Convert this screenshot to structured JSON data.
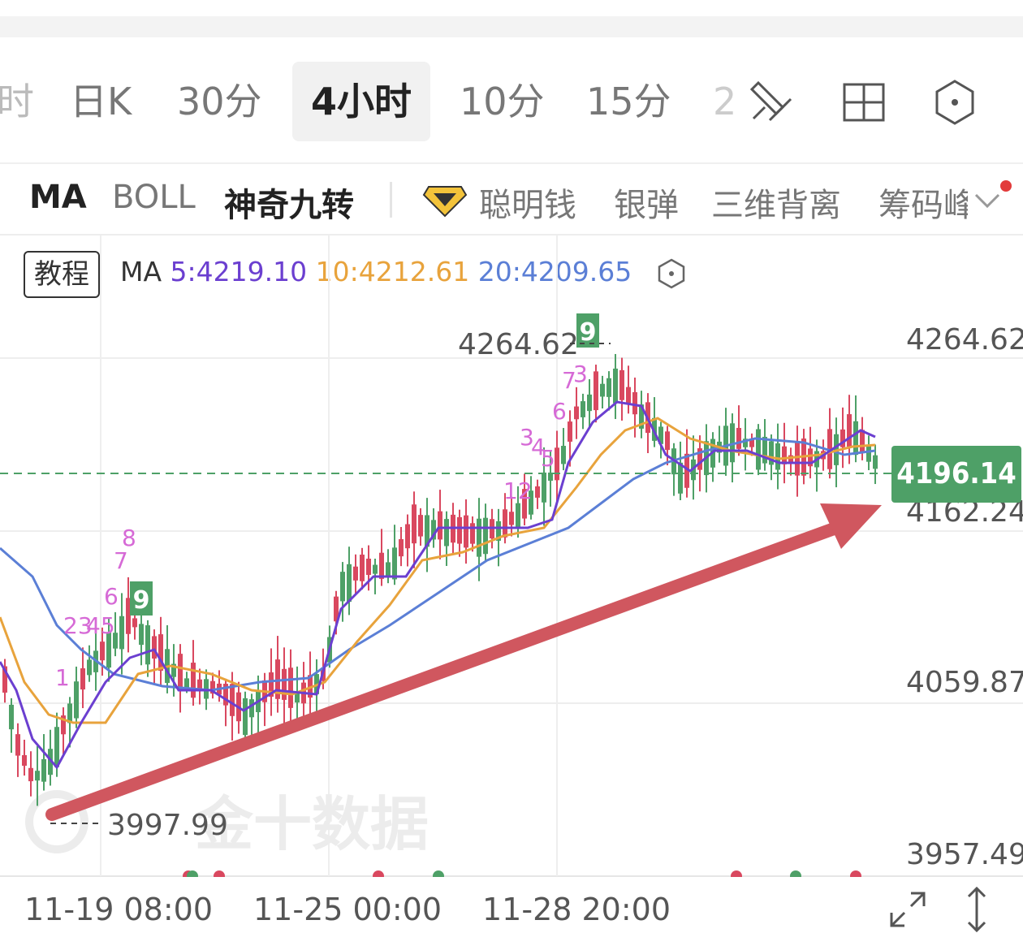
{
  "tabs": {
    "partial_left": "时",
    "items": [
      "日K",
      "30分",
      "4小时",
      "10分",
      "15分"
    ],
    "partial_right": "2",
    "active": "4小时"
  },
  "indicators": {
    "items": [
      "MA",
      "BOLL",
      "神奇九转"
    ],
    "items2": [
      "聪明钱",
      "银弹",
      "三维背离",
      "筹码峰"
    ]
  },
  "tutorial_label": "教程",
  "ma": {
    "label": "MA",
    "ma5": "5:4219.10",
    "ma10": "10:4212.61",
    "ma20": "20:4209.65",
    "colors": {
      "ma5": "#6b3fd0",
      "ma10": "#e8a33c",
      "ma20": "#5b7fd6"
    }
  },
  "chart_data": {
    "type": "candlestick",
    "y_axis_labels": [
      "4264.62",
      "4162.24",
      "4059.87",
      "3957.49"
    ],
    "ylim": [
      3957.49,
      4264.62
    ],
    "current_price": "4196.14",
    "high_marker": "4264.62",
    "low_marker": "3997.99",
    "x_labels": [
      "11-19 08:00",
      "11-25 00:00",
      "11-28 20:00"
    ],
    "nine_turn_marks": [
      {
        "text": "1",
        "color": "#d66ad6"
      },
      {
        "text": "23",
        "color": "#d66ad6"
      },
      {
        "text": "45",
        "color": "#d66ad6"
      },
      {
        "text": "6",
        "color": "#d66ad6"
      },
      {
        "text": "7",
        "color": "#d66ad6"
      },
      {
        "text": "8",
        "color": "#d66ad6"
      },
      {
        "text": "9",
        "color": "#4ea067"
      },
      {
        "text": "12",
        "color": "#d66ad6"
      },
      {
        "text": "3",
        "color": "#d66ad6"
      },
      {
        "text": "4",
        "color": "#d66ad6"
      },
      {
        "text": "5",
        "color": "#d66ad6"
      },
      {
        "text": "6",
        "color": "#d66ad6"
      },
      {
        "text": "7",
        "color": "#d66ad6"
      },
      {
        "text": "3",
        "color": "#d66ad6"
      },
      {
        "text": "9",
        "color": "#4ea067"
      }
    ],
    "watermark": "金十数据",
    "colors": {
      "up": "#d9485f",
      "down": "#4ea067",
      "arrow": "#d0575f"
    }
  }
}
